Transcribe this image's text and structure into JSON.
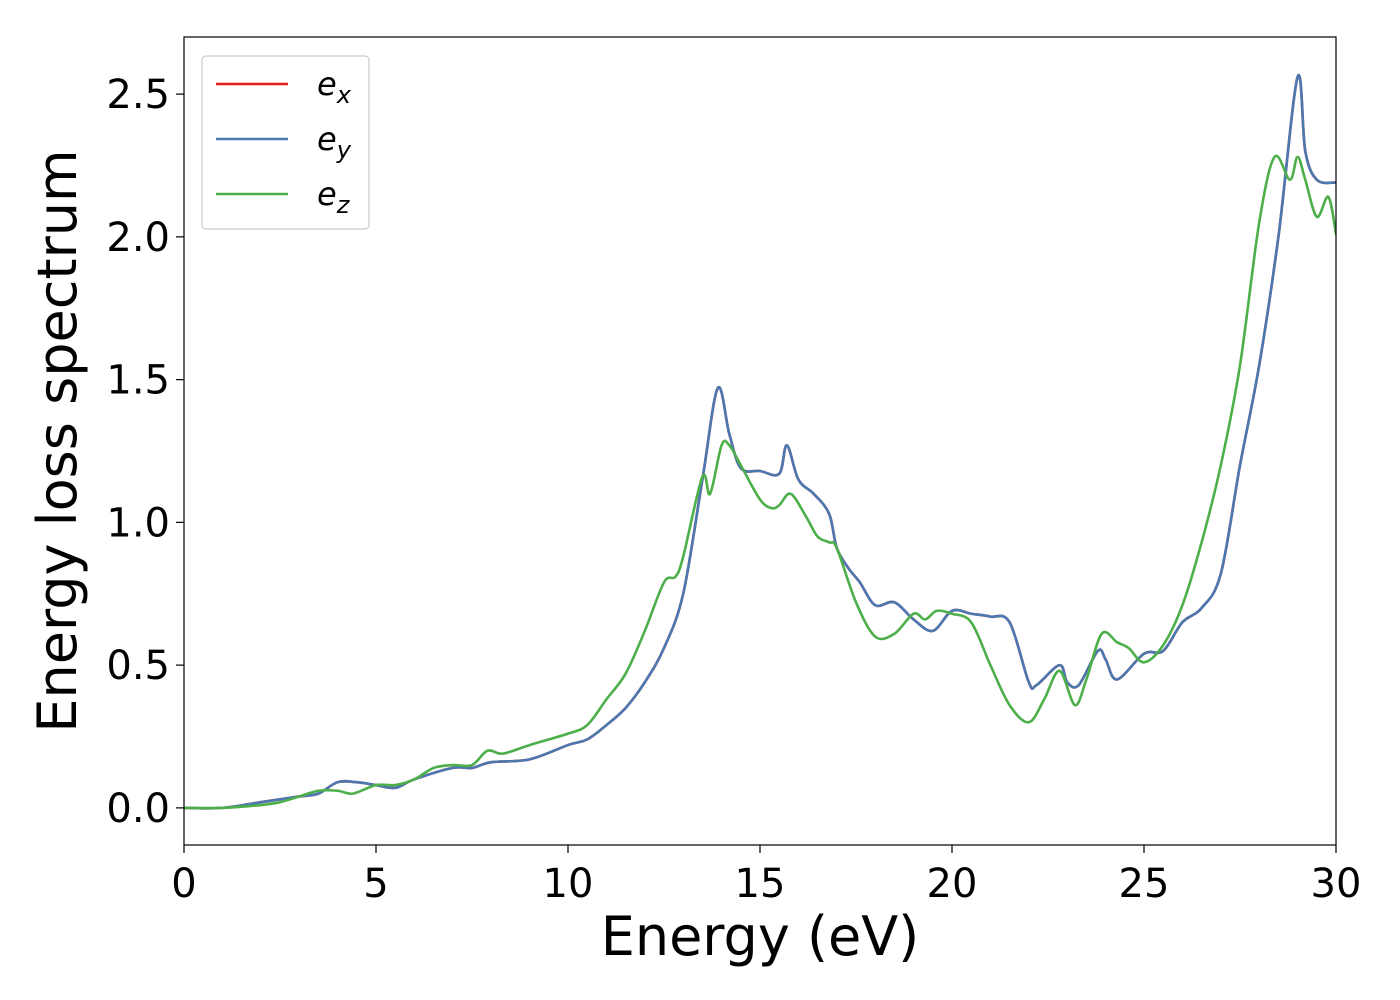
{
  "chart_data": {
    "type": "line",
    "title": "",
    "xlabel": "Energy (eV)",
    "ylabel": "Energy loss spectrum",
    "xlim": [
      0,
      30
    ],
    "ylim": [
      -0.13,
      2.7
    ],
    "xticks": [
      0,
      5,
      10,
      15,
      20,
      25,
      30
    ],
    "yticks": [
      0.0,
      0.5,
      1.0,
      1.5,
      2.0,
      2.5
    ],
    "xtick_labels": [
      "0",
      "5",
      "10",
      "15",
      "20",
      "25",
      "30"
    ],
    "ytick_labels": [
      "0.0",
      "0.5",
      "1.0",
      "1.5",
      "2.0",
      "2.5"
    ],
    "grid": false,
    "legend_position": "top-left",
    "series": [
      {
        "name": "e_x",
        "legend_base": "e",
        "legend_sub": "x",
        "color": "#e41a1c",
        "x": [
          0,
          1,
          2,
          2.5,
          3,
          3.5,
          4,
          4.5,
          5,
          5.5,
          6,
          7,
          7.5,
          8,
          9,
          10,
          10.5,
          11,
          11.5,
          12,
          12.5,
          13,
          13.5,
          13.9,
          14.2,
          14.5,
          15,
          15.5,
          15.7,
          16,
          16.4,
          16.8,
          17,
          17.3,
          17.6,
          18,
          18.5,
          19,
          19.5,
          20,
          20.5,
          21,
          21.5,
          22,
          22.2,
          22.8,
          23,
          23.3,
          23.8,
          24,
          24.3,
          25,
          25.5,
          26,
          26.5,
          27,
          27.5,
          28,
          28.5,
          29,
          29.2,
          29.5,
          30
        ],
        "y": [
          0,
          0,
          0.02,
          0.03,
          0.04,
          0.05,
          0.09,
          0.09,
          0.08,
          0.07,
          0.1,
          0.14,
          0.14,
          0.16,
          0.17,
          0.22,
          0.24,
          0.29,
          0.35,
          0.44,
          0.56,
          0.75,
          1.15,
          1.47,
          1.31,
          1.19,
          1.18,
          1.17,
          1.27,
          1.15,
          1.1,
          1.03,
          0.91,
          0.84,
          0.79,
          0.71,
          0.72,
          0.66,
          0.62,
          0.69,
          0.68,
          0.67,
          0.65,
          0.44,
          0.43,
          0.5,
          0.44,
          0.43,
          0.55,
          0.52,
          0.45,
          0.54,
          0.55,
          0.65,
          0.7,
          0.82,
          1.2,
          1.55,
          2.0,
          2.56,
          2.3,
          2.2,
          2.19
        ]
      },
      {
        "name": "e_y",
        "legend_base": "e",
        "legend_sub": "y",
        "color": "#4a78b0",
        "x": [
          0,
          1,
          2,
          2.5,
          3,
          3.5,
          4,
          4.5,
          5,
          5.5,
          6,
          7,
          7.5,
          8,
          9,
          10,
          10.5,
          11,
          11.5,
          12,
          12.5,
          13,
          13.5,
          13.9,
          14.2,
          14.5,
          15,
          15.5,
          15.7,
          16,
          16.4,
          16.8,
          17,
          17.3,
          17.6,
          18,
          18.5,
          19,
          19.5,
          20,
          20.5,
          21,
          21.5,
          22,
          22.2,
          22.8,
          23,
          23.3,
          23.8,
          24,
          24.3,
          25,
          25.5,
          26,
          26.5,
          27,
          27.5,
          28,
          28.5,
          29,
          29.2,
          29.5,
          30
        ],
        "y": [
          0,
          0,
          0.02,
          0.03,
          0.04,
          0.05,
          0.09,
          0.09,
          0.08,
          0.07,
          0.1,
          0.14,
          0.14,
          0.16,
          0.17,
          0.22,
          0.24,
          0.29,
          0.35,
          0.44,
          0.56,
          0.75,
          1.15,
          1.47,
          1.31,
          1.19,
          1.18,
          1.17,
          1.27,
          1.15,
          1.1,
          1.03,
          0.91,
          0.84,
          0.79,
          0.71,
          0.72,
          0.66,
          0.62,
          0.69,
          0.68,
          0.67,
          0.65,
          0.44,
          0.43,
          0.5,
          0.44,
          0.43,
          0.55,
          0.52,
          0.45,
          0.54,
          0.55,
          0.65,
          0.7,
          0.82,
          1.2,
          1.55,
          2.0,
          2.56,
          2.3,
          2.2,
          2.19
        ]
      },
      {
        "name": "e_z",
        "legend_base": "e",
        "legend_sub": "z",
        "color": "#4daf4a",
        "x": [
          0,
          1,
          2,
          2.5,
          3,
          3.5,
          4,
          4.4,
          5,
          5.5,
          6,
          6.5,
          7,
          7.5,
          7.9,
          8.3,
          9,
          10,
          10.5,
          11,
          11.5,
          12,
          12.5,
          12.8,
          13,
          13.5,
          13.7,
          14,
          14.2,
          14.5,
          15,
          15.3,
          15.5,
          15.8,
          16.2,
          16.5,
          16.8,
          17,
          17.5,
          18,
          18.5,
          19,
          19.3,
          19.6,
          20,
          20.5,
          21,
          21.5,
          22,
          22.4,
          22.8,
          23.2,
          23.5,
          23.9,
          24.3,
          24.6,
          25,
          25.5,
          26,
          26.5,
          27,
          27.5,
          28,
          28.4,
          28.8,
          29,
          29.2,
          29.5,
          29.8,
          30
        ],
        "y": [
          0,
          0,
          0.01,
          0.02,
          0.04,
          0.06,
          0.06,
          0.05,
          0.08,
          0.08,
          0.1,
          0.14,
          0.15,
          0.15,
          0.2,
          0.19,
          0.22,
          0.26,
          0.29,
          0.38,
          0.47,
          0.62,
          0.79,
          0.81,
          0.88,
          1.16,
          1.1,
          1.27,
          1.27,
          1.2,
          1.08,
          1.05,
          1.06,
          1.1,
          1.02,
          0.95,
          0.93,
          0.91,
          0.72,
          0.6,
          0.61,
          0.68,
          0.66,
          0.69,
          0.68,
          0.65,
          0.5,
          0.36,
          0.3,
          0.38,
          0.48,
          0.36,
          0.45,
          0.61,
          0.58,
          0.56,
          0.51,
          0.57,
          0.71,
          0.93,
          1.2,
          1.55,
          2.05,
          2.28,
          2.2,
          2.28,
          2.2,
          2.07,
          2.14,
          2.01
        ]
      }
    ]
  }
}
